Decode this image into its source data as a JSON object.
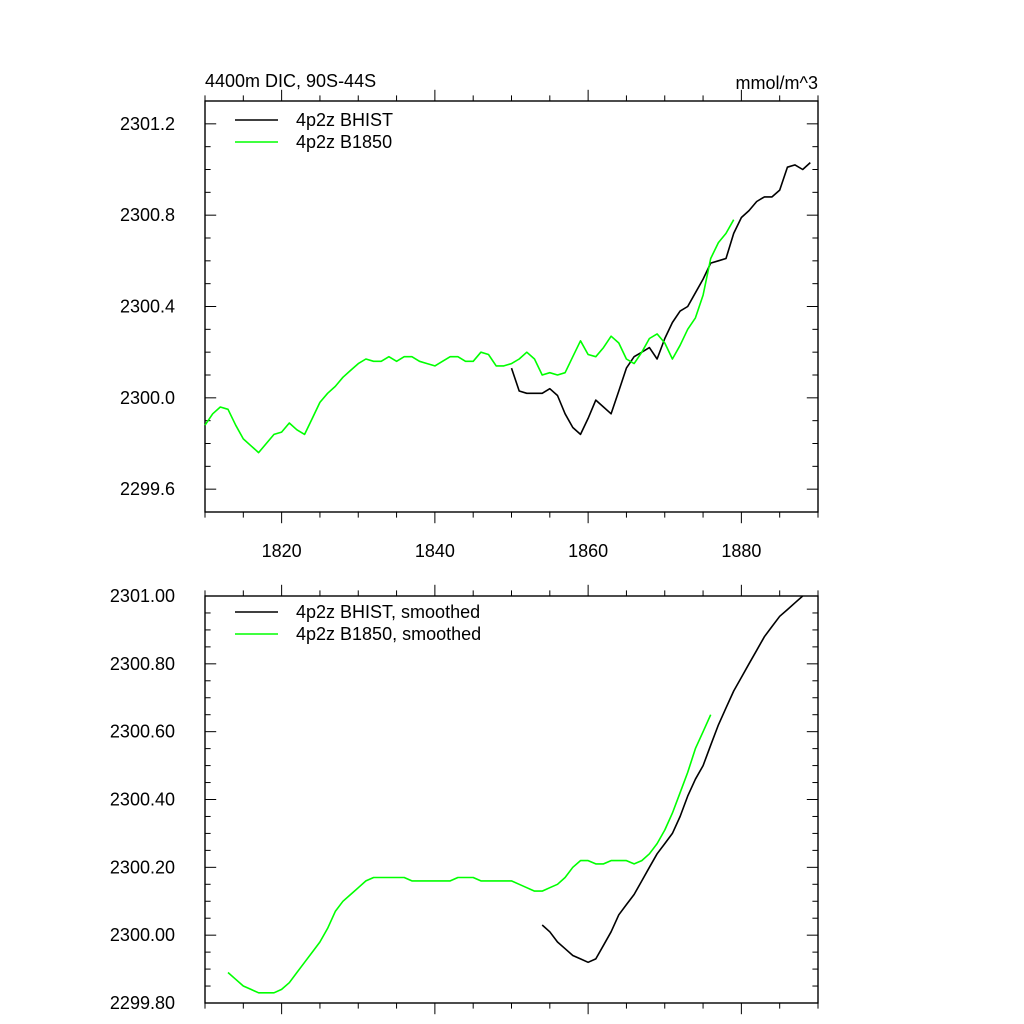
{
  "chart_data": [
    {
      "type": "line",
      "title": "4400m DIC, 90S-44S",
      "units": "mmol/m^3",
      "xlabel": "",
      "ylabel": "",
      "xlim": [
        1810,
        1890
      ],
      "ylim": [
        2299.5,
        2301.3
      ],
      "xticks": [
        1820,
        1840,
        1860,
        1880
      ],
      "xtick_labels": [
        "1820",
        "1840",
        "1860",
        "1880"
      ],
      "yticks": [
        2299.6,
        2300.0,
        2300.4,
        2300.8,
        2301.2
      ],
      "ytick_labels": [
        "2299.6",
        "2300.0",
        "2300.4",
        "2300.8",
        "2301.2"
      ],
      "legend": "top-left",
      "series": [
        {
          "name": "4p2z BHIST",
          "color": "#000000",
          "x": [
            1850,
            1851,
            1852,
            1853,
            1854,
            1855,
            1856,
            1857,
            1858,
            1859,
            1860,
            1861,
            1862,
            1863,
            1864,
            1865,
            1866,
            1867,
            1868,
            1869,
            1870,
            1871,
            1872,
            1873,
            1874,
            1875,
            1876,
            1877,
            1878,
            1879,
            1880,
            1881,
            1882,
            1883,
            1884,
            1885,
            1886,
            1887,
            1888,
            1889
          ],
          "values": [
            2300.13,
            2300.03,
            2300.02,
            2300.02,
            2300.02,
            2300.04,
            2300.01,
            2299.93,
            2299.87,
            2299.84,
            2299.91,
            2299.99,
            2299.96,
            2299.93,
            2300.03,
            2300.13,
            2300.18,
            2300.2,
            2300.22,
            2300.17,
            2300.26,
            2300.33,
            2300.38,
            2300.4,
            2300.46,
            2300.52,
            2300.59,
            2300.6,
            2300.61,
            2300.72,
            2300.79,
            2300.82,
            2300.86,
            2300.88,
            2300.88,
            2300.91,
            2301.01,
            2301.02,
            2301.0,
            2301.03
          ]
        },
        {
          "name": "4p2z B1850",
          "color": "#00ff00",
          "x": [
            1810,
            1811,
            1812,
            1813,
            1814,
            1815,
            1816,
            1817,
            1818,
            1819,
            1820,
            1821,
            1822,
            1823,
            1824,
            1825,
            1826,
            1827,
            1828,
            1829,
            1830,
            1831,
            1832,
            1833,
            1834,
            1835,
            1836,
            1837,
            1838,
            1839,
            1840,
            1841,
            1842,
            1843,
            1844,
            1845,
            1846,
            1847,
            1848,
            1849,
            1850,
            1851,
            1852,
            1853,
            1854,
            1855,
            1856,
            1857,
            1858,
            1859,
            1860,
            1861,
            1862,
            1863,
            1864,
            1865,
            1866,
            1867,
            1868,
            1869,
            1870,
            1871,
            1872,
            1873,
            1874,
            1875,
            1876,
            1877,
            1878,
            1879
          ],
          "values": [
            2299.88,
            2299.93,
            2299.96,
            2299.95,
            2299.88,
            2299.82,
            2299.79,
            2299.76,
            2299.8,
            2299.84,
            2299.85,
            2299.89,
            2299.86,
            2299.84,
            2299.91,
            2299.98,
            2300.02,
            2300.05,
            2300.09,
            2300.12,
            2300.15,
            2300.17,
            2300.16,
            2300.16,
            2300.18,
            2300.16,
            2300.18,
            2300.18,
            2300.16,
            2300.15,
            2300.14,
            2300.16,
            2300.18,
            2300.18,
            2300.16,
            2300.16,
            2300.2,
            2300.19,
            2300.14,
            2300.14,
            2300.15,
            2300.17,
            2300.2,
            2300.17,
            2300.1,
            2300.11,
            2300.1,
            2300.11,
            2300.18,
            2300.25,
            2300.19,
            2300.18,
            2300.22,
            2300.27,
            2300.24,
            2300.17,
            2300.15,
            2300.2,
            2300.26,
            2300.28,
            2300.24,
            2300.17,
            2300.23,
            2300.3,
            2300.35,
            2300.45,
            2300.61,
            2300.68,
            2300.72,
            2300.78
          ]
        }
      ]
    },
    {
      "type": "line",
      "title": "",
      "xlabel": "",
      "ylabel": "",
      "xlim": [
        1810,
        1890
      ],
      "ylim": [
        2299.8,
        2301.0
      ],
      "xticks": [
        1820,
        1840,
        1860,
        1880
      ],
      "xtick_labels": [
        "",
        "",
        "",
        ""
      ],
      "yticks": [
        2299.8,
        2300.0,
        2300.2,
        2300.4,
        2300.6,
        2300.8,
        2301.0
      ],
      "ytick_labels": [
        "2299.80",
        "2300.00",
        "2300.20",
        "2300.40",
        "2300.60",
        "2300.80",
        "2301.00"
      ],
      "legend": "top-left",
      "series": [
        {
          "name": "4p2z BHIST, smoothed",
          "color": "#000000",
          "x": [
            1854,
            1855,
            1856,
            1857,
            1858,
            1859,
            1860,
            1861,
            1862,
            1863,
            1864,
            1865,
            1866,
            1867,
            1868,
            1869,
            1870,
            1871,
            1872,
            1873,
            1874,
            1875,
            1876,
            1877,
            1878,
            1879,
            1880,
            1881,
            1882,
            1883,
            1884,
            1885,
            1886,
            1887,
            1888
          ],
          "values": [
            2300.03,
            2300.01,
            2299.98,
            2299.96,
            2299.94,
            2299.93,
            2299.92,
            2299.93,
            2299.97,
            2300.01,
            2300.06,
            2300.09,
            2300.12,
            2300.16,
            2300.2,
            2300.24,
            2300.27,
            2300.3,
            2300.35,
            2300.41,
            2300.46,
            2300.5,
            2300.56,
            2300.62,
            2300.67,
            2300.72,
            2300.76,
            2300.8,
            2300.84,
            2300.88,
            2300.91,
            2300.94,
            2300.96,
            2300.98,
            2301.0
          ]
        },
        {
          "name": "4p2z B1850, smoothed",
          "color": "#00ff00",
          "x": [
            1813,
            1814,
            1815,
            1816,
            1817,
            1818,
            1819,
            1820,
            1821,
            1822,
            1823,
            1824,
            1825,
            1826,
            1827,
            1828,
            1829,
            1830,
            1831,
            1832,
            1833,
            1834,
            1835,
            1836,
            1837,
            1838,
            1839,
            1840,
            1841,
            1842,
            1843,
            1844,
            1845,
            1846,
            1847,
            1848,
            1849,
            1850,
            1851,
            1852,
            1853,
            1854,
            1855,
            1856,
            1857,
            1858,
            1859,
            1860,
            1861,
            1862,
            1863,
            1864,
            1865,
            1866,
            1867,
            1868,
            1869,
            1870,
            1871,
            1872,
            1873,
            1874,
            1875,
            1876
          ],
          "values": [
            2299.89,
            2299.87,
            2299.85,
            2299.84,
            2299.83,
            2299.83,
            2299.83,
            2299.84,
            2299.86,
            2299.89,
            2299.92,
            2299.95,
            2299.98,
            2300.02,
            2300.07,
            2300.1,
            2300.12,
            2300.14,
            2300.16,
            2300.17,
            2300.17,
            2300.17,
            2300.17,
            2300.17,
            2300.16,
            2300.16,
            2300.16,
            2300.16,
            2300.16,
            2300.16,
            2300.17,
            2300.17,
            2300.17,
            2300.16,
            2300.16,
            2300.16,
            2300.16,
            2300.16,
            2300.15,
            2300.14,
            2300.13,
            2300.13,
            2300.14,
            2300.15,
            2300.17,
            2300.2,
            2300.22,
            2300.22,
            2300.21,
            2300.21,
            2300.22,
            2300.22,
            2300.22,
            2300.21,
            2300.22,
            2300.24,
            2300.27,
            2300.31,
            2300.36,
            2300.42,
            2300.48,
            2300.55,
            2300.6,
            2300.65
          ]
        }
      ]
    }
  ]
}
